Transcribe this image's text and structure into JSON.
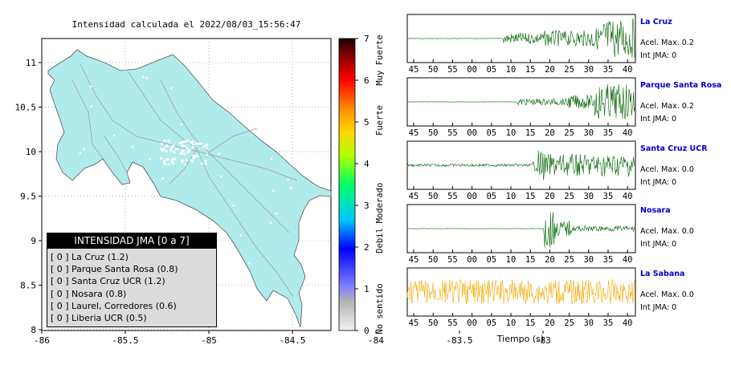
{
  "map": {
    "title": "Intensidad calculada el 2022/08/03_15:56:47",
    "x_ticks": [
      "-86",
      "-85.5",
      "-85",
      "-84.5",
      "-84",
      "-83.5",
      "-83"
    ],
    "y_ticks": [
      "11",
      "10.5",
      "10",
      "9.5",
      "9",
      "8.5",
      "8"
    ],
    "land_color": "#b0ebeb"
  },
  "colorbar": {
    "ticks": [
      "0",
      "1",
      "2",
      "3",
      "4",
      "5",
      "6",
      "7"
    ],
    "labels": [
      "No sentido",
      "Debil",
      "Moderado",
      "Fuerte",
      "Muy Fuerte"
    ]
  },
  "legend": {
    "title": "INTENSIDAD JMA [0 a 7]",
    "items": [
      {
        "level": "[ 0 ]",
        "name": "La Cruz (1.2)"
      },
      {
        "level": "[ 0 ]",
        "name": "Parque Santa Rosa (0.8)"
      },
      {
        "level": "[ 0 ]",
        "name": "Santa Cruz UCR (1.2)"
      },
      {
        "level": "[ 0 ]",
        "name": "Nosara (0.8)"
      },
      {
        "level": "[ 0 ]",
        "name": "Laurel, Corredores (0.6)"
      },
      {
        "level": "[ 0 ]",
        "name": "Liberia UCR (0.5)"
      }
    ]
  },
  "waveforms": {
    "x_ticks": [
      "45",
      "50",
      "55",
      "00",
      "05",
      "10",
      "15",
      "20",
      "25",
      "30",
      "35",
      "40"
    ],
    "xlabel": "Tiempo (s)",
    "stations": [
      {
        "name": "La Cruz",
        "accel": "Acel. Max. 0.2",
        "int": "Int JMA: 0",
        "color": "#006400"
      },
      {
        "name": "Parque Santa Rosa",
        "accel": "Acel. Max. 0.2",
        "int": "Int JMA: 0",
        "color": "#006400"
      },
      {
        "name": "Santa Cruz UCR",
        "accel": "Acel. Max. 0.0",
        "int": "Int JMA: 0",
        "color": "#006400"
      },
      {
        "name": "Nosara",
        "accel": "Acel. Max. 0.0",
        "int": "Int JMA: 0",
        "color": "#006400"
      },
      {
        "name": "La Sabana",
        "accel": "Acel. Max. 0.0",
        "int": "Int JMA: 0",
        "color": "#f5a800"
      }
    ]
  }
}
